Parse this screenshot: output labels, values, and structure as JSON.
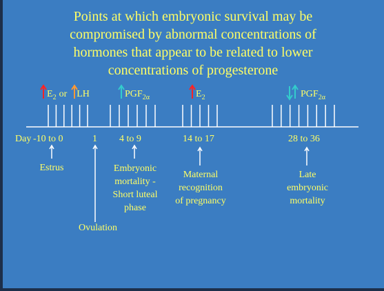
{
  "title_lines": [
    "Points at which embryonic survival may be",
    "compromised by abnormal concentrations of",
    "hormones that appear to be related to lower",
    "concentrations of progesterone"
  ],
  "hormones": [
    {
      "name": "E",
      "sub": "2",
      "extra": "or",
      "name2": "LH"
    },
    {
      "name": "PGF",
      "sub": "2α"
    },
    {
      "name": "E",
      "sub": "2"
    },
    {
      "name": "PGF",
      "sub": "2α"
    }
  ],
  "timeline": {
    "day": "Day",
    "ranges": [
      "-10 to 0",
      "1",
      "4 to 9",
      "14 to 17",
      "28 to 36"
    ]
  },
  "events": [
    {
      "lines": [
        "Estrus"
      ]
    },
    {
      "lines": [
        "Ovulation"
      ]
    },
    {
      "lines": [
        "Embryonic",
        "mortality -",
        "Short luteal",
        "phase"
      ]
    },
    {
      "lines": [
        "Maternal",
        "recognition",
        "of pregnancy"
      ]
    },
    {
      "lines": [
        "Late",
        "embryonic",
        "mortality"
      ]
    }
  ]
}
